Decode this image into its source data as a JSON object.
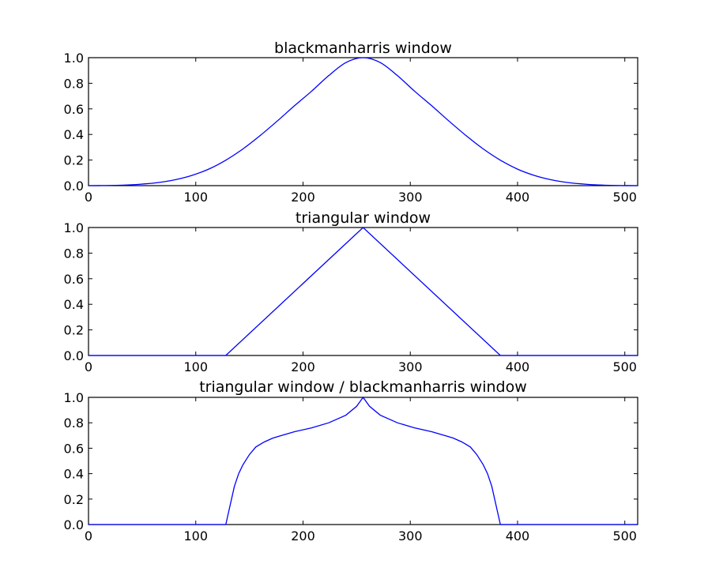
{
  "chart_data": [
    {
      "type": "line",
      "title": "blackmanharris window",
      "xlabel": "",
      "ylabel": "",
      "xlim": [
        0,
        512
      ],
      "ylim": [
        0.0,
        1.0
      ],
      "xticks": [
        "0",
        "100",
        "200",
        "300",
        "400",
        "500"
      ],
      "yticks": [
        "0.0",
        "0.2",
        "0.4",
        "0.6",
        "0.8",
        "1.0"
      ],
      "grid": false,
      "series": [
        {
          "color": "#0000ff",
          "x": [
            0,
            16,
            32,
            48,
            64,
            80,
            96,
            112,
            128,
            144,
            160,
            176,
            192,
            208,
            224,
            240,
            256,
            272,
            288,
            304,
            320,
            336,
            352,
            368,
            384,
            400,
            416,
            432,
            448,
            464,
            480,
            496,
            512
          ],
          "y": [
            0.0,
            0.001,
            0.004,
            0.011,
            0.023,
            0.045,
            0.079,
            0.129,
            0.199,
            0.287,
            0.391,
            0.505,
            0.624,
            0.738,
            0.86,
            0.962,
            1.0,
            0.962,
            0.86,
            0.738,
            0.624,
            0.505,
            0.391,
            0.287,
            0.199,
            0.129,
            0.079,
            0.045,
            0.023,
            0.011,
            0.004,
            0.001,
            0.0
          ]
        }
      ]
    },
    {
      "type": "line",
      "title": "triangular window",
      "xlabel": "",
      "ylabel": "",
      "xlim": [
        0,
        512
      ],
      "ylim": [
        0.0,
        1.0
      ],
      "xticks": [
        "0",
        "100",
        "200",
        "300",
        "400",
        "500"
      ],
      "yticks": [
        "0.0",
        "0.2",
        "0.4",
        "0.6",
        "0.8",
        "1.0"
      ],
      "grid": false,
      "series": [
        {
          "color": "#0000ff",
          "x": [
            0,
            128,
            256,
            384,
            512
          ],
          "y": [
            0.0,
            0.0,
            1.0,
            0.0,
            0.0
          ]
        }
      ]
    },
    {
      "type": "line",
      "title": "triangular window / blackmanharris window",
      "xlabel": "",
      "ylabel": "",
      "xlim": [
        0,
        512
      ],
      "ylim": [
        0.0,
        1.0
      ],
      "xticks": [
        "0",
        "100",
        "200",
        "300",
        "400",
        "500"
      ],
      "yticks": [
        "0.0",
        "0.2",
        "0.4",
        "0.6",
        "0.8",
        "1.0"
      ],
      "grid": false,
      "series": [
        {
          "color": "#0000ff",
          "x": [
            0,
            127,
            128,
            132,
            136,
            140,
            144,
            150,
            156,
            164,
            172,
            180,
            192,
            208,
            224,
            240,
            250,
            256,
            262,
            272,
            288,
            304,
            320,
            332,
            340,
            348,
            356,
            362,
            368,
            372,
            376,
            380,
            384,
            385,
            512
          ],
          "y": [
            0.0,
            0.0,
            0.0,
            0.15,
            0.3,
            0.4,
            0.47,
            0.55,
            0.61,
            0.65,
            0.68,
            0.7,
            0.73,
            0.76,
            0.8,
            0.86,
            0.93,
            1.0,
            0.93,
            0.86,
            0.8,
            0.76,
            0.73,
            0.7,
            0.68,
            0.65,
            0.61,
            0.55,
            0.47,
            0.4,
            0.3,
            0.15,
            0.0,
            0.0,
            0.0
          ]
        }
      ]
    }
  ]
}
